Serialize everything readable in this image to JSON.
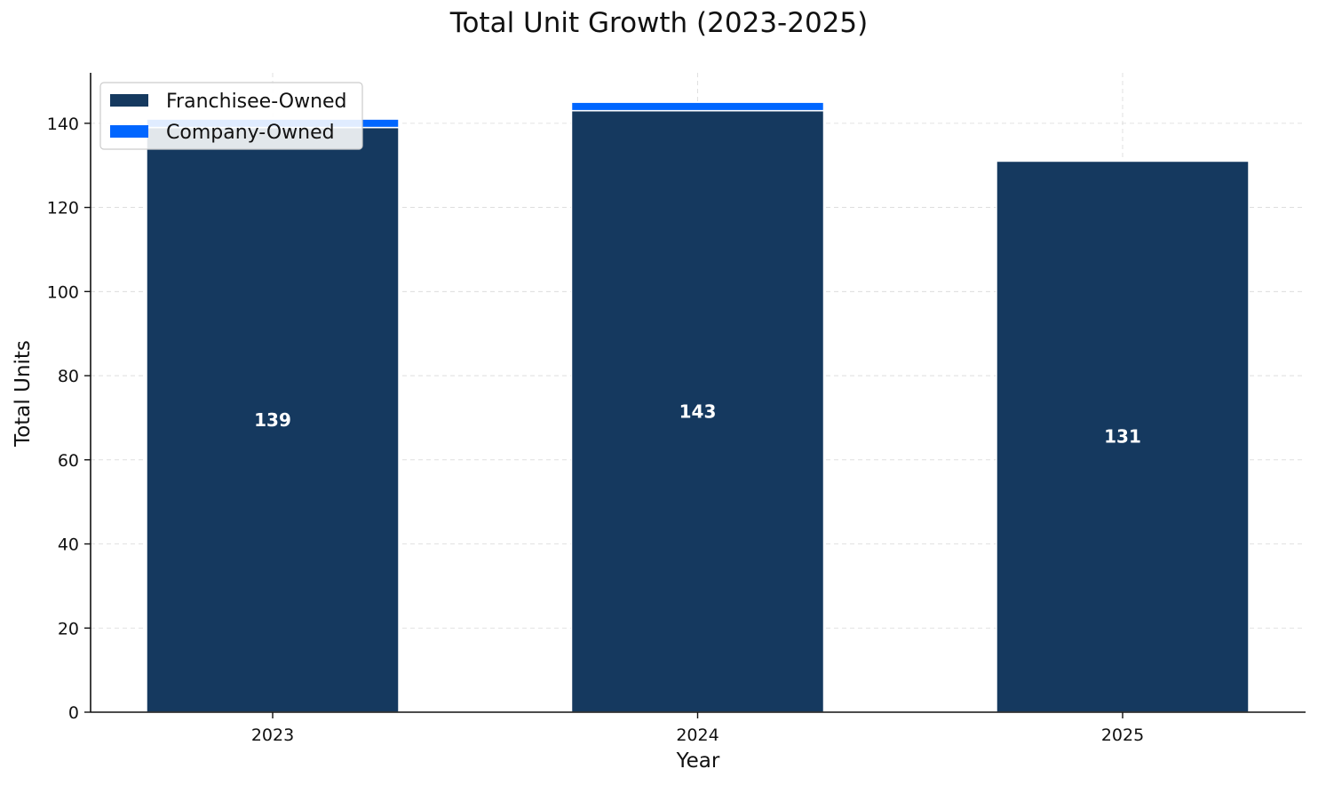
{
  "chart_data": {
    "type": "bar",
    "stacked": true,
    "title": "Total Unit Growth (2023-2025)",
    "xlabel": "Year",
    "ylabel": "Total Units",
    "categories": [
      "2023",
      "2024",
      "2025"
    ],
    "series": [
      {
        "name": "Franchisee-Owned",
        "values": [
          139,
          143,
          131
        ],
        "color": "#15395f"
      },
      {
        "name": "Company-Owned",
        "values": [
          2,
          2,
          0
        ],
        "color": "#0066ff"
      }
    ],
    "data_labels": [
      "139",
      "143",
      "131"
    ],
    "ylim": [
      0,
      152
    ],
    "yticks": [
      0,
      20,
      40,
      60,
      80,
      100,
      120,
      140
    ],
    "grid": true,
    "legend": "top-left"
  }
}
